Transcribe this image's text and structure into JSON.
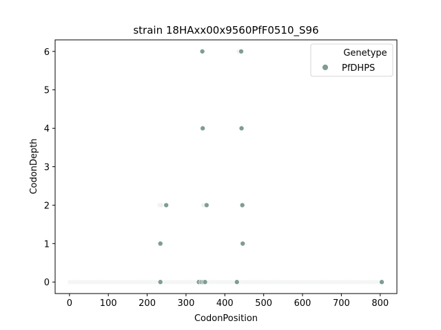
{
  "chart_data": {
    "type": "scatter",
    "title": "strain 18HAxx00x9560PfF0510_S96",
    "xlabel": "CodonPosition",
    "ylabel": "CodonDepth",
    "xlim": [
      -37,
      843
    ],
    "ylim": [
      -0.3,
      6.3
    ],
    "xticks": [
      0,
      100,
      200,
      300,
      400,
      500,
      600,
      700,
      800
    ],
    "yticks": [
      0,
      1,
      2,
      3,
      4,
      5,
      6
    ],
    "grid": false,
    "legend": {
      "title": "Genetype",
      "placement": "upper right",
      "entries": [
        {
          "name": "PfDHPS",
          "color": "#7f9c96"
        }
      ]
    },
    "faint_color": "#eef1f0",
    "series": [
      {
        "name": "PfDHPS",
        "color": "#7f9c96",
        "points": [
          {
            "x": 342,
            "y": 6
          },
          {
            "x": 442,
            "y": 6
          },
          {
            "x": 343,
            "y": 4
          },
          {
            "x": 443,
            "y": 4
          },
          {
            "x": 249,
            "y": 2
          },
          {
            "x": 353,
            "y": 2
          },
          {
            "x": 445,
            "y": 2
          },
          {
            "x": 234,
            "y": 1
          },
          {
            "x": 446,
            "y": 1
          },
          {
            "x": 234,
            "y": 0
          },
          {
            "x": 333,
            "y": 0
          },
          {
            "x": 340,
            "y": 0
          },
          {
            "x": 345,
            "y": 0
          },
          {
            "x": 349,
            "y": 0
          },
          {
            "x": 431,
            "y": 0
          },
          {
            "x": 804,
            "y": 0
          }
        ],
        "faint_points": [
          {
            "x": 436,
            "y": 6
          },
          {
            "x": 232,
            "y": 2
          },
          {
            "x": 236,
            "y": 2
          },
          {
            "x": 345,
            "y": 2
          }
        ],
        "faint_zero_range": [
          1,
          806
        ]
      }
    ]
  }
}
